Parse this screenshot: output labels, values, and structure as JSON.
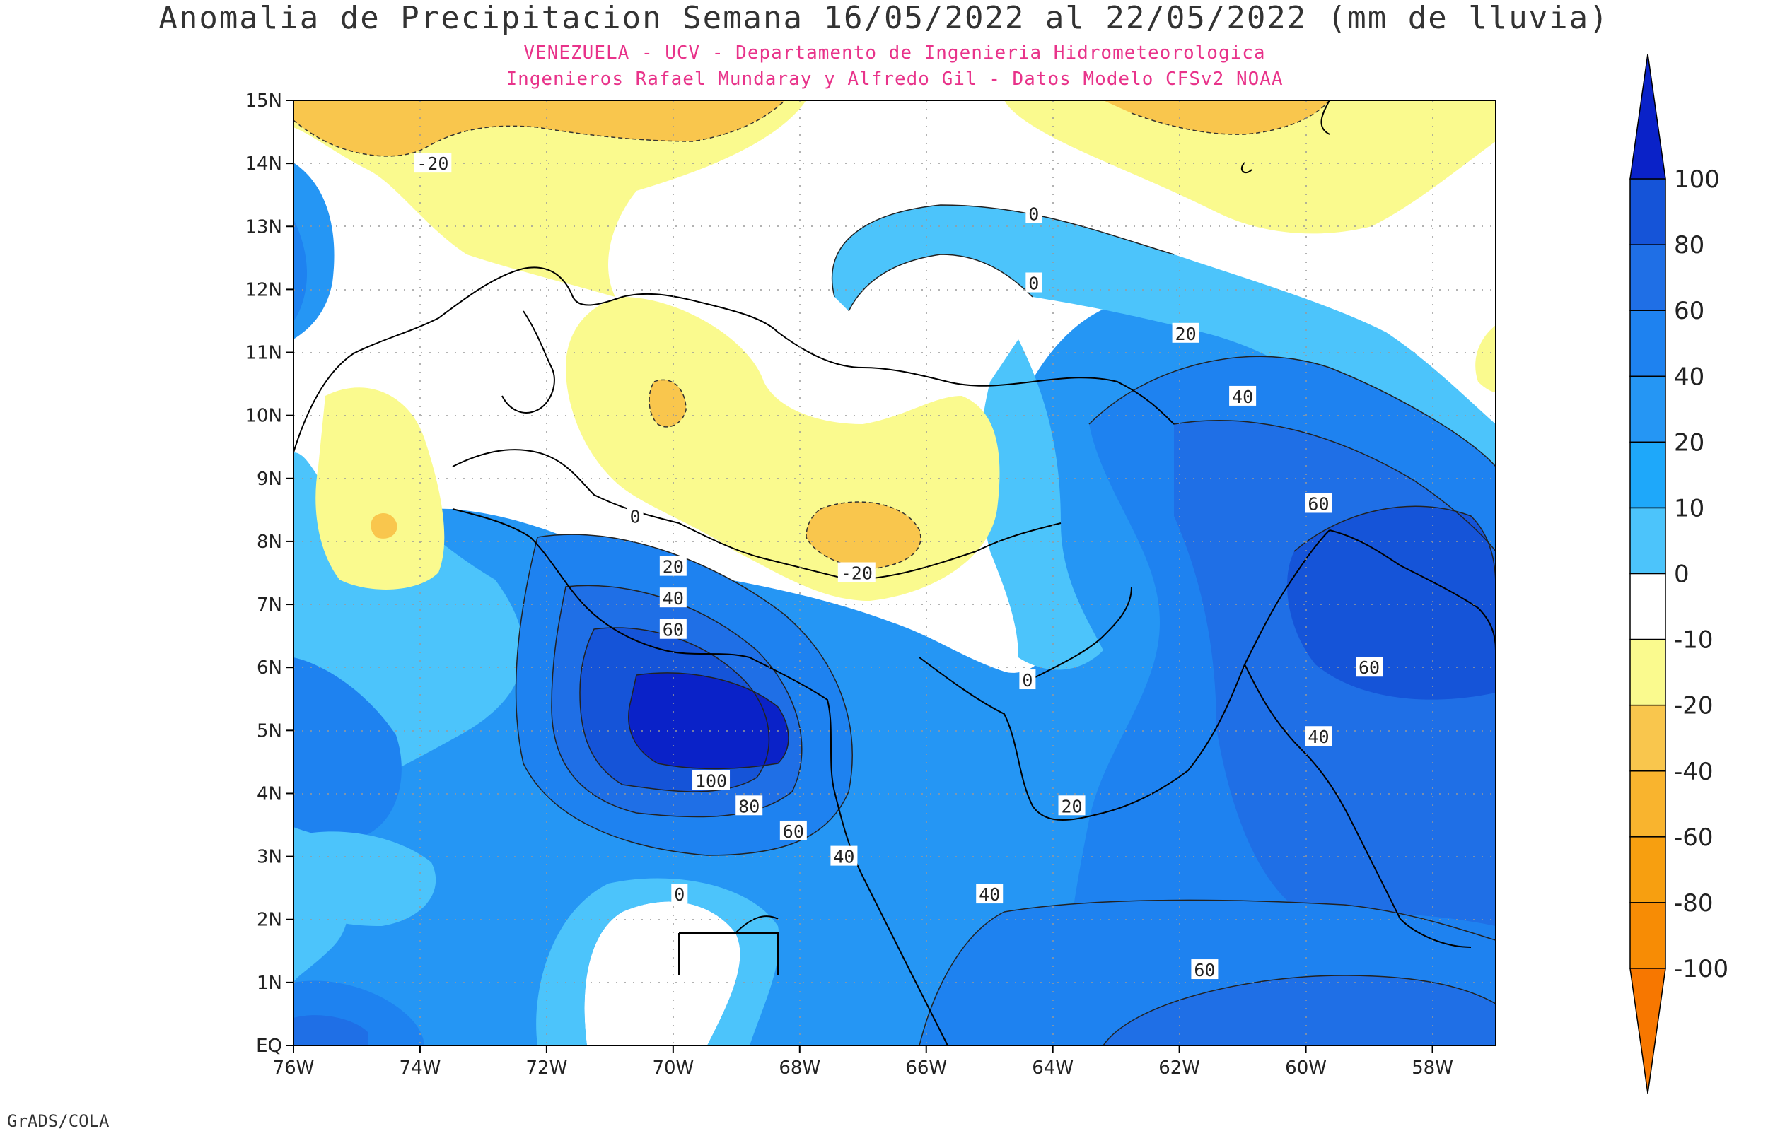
{
  "title": "Anomalia de Precipitacion Semana 16/05/2022 al 22/05/2022 (mm de lluvia)",
  "subtitle1": "VENEZUELA - UCV - Departamento de Ingenieria Hidrometeorologica",
  "subtitle2": "Ingenieros Rafael Mundaray y Alfredo Gil - Datos Modelo CFSv2 NOAA",
  "credit": "GrADS/COLA",
  "lon_labels": [
    "76W",
    "74W",
    "72W",
    "70W",
    "68W",
    "66W",
    "64W",
    "62W",
    "60W",
    "58W"
  ],
  "lat_labels": [
    "EQ",
    "1N",
    "2N",
    "3N",
    "4N",
    "5N",
    "6N",
    "7N",
    "8N",
    "9N",
    "10N",
    "11N",
    "12N",
    "13N",
    "14N",
    "15N"
  ],
  "colorbar": {
    "labels": [
      "100",
      "80",
      "60",
      "40",
      "20",
      "10",
      "0",
      "-10",
      "-20",
      "-40",
      "-60",
      "-80",
      "-100"
    ],
    "colors": [
      "#0a22c8",
      "#1554d8",
      "#1f6fe6",
      "#1e82f0",
      "#2596f4",
      "#1ea8fa",
      "#4cc4fb",
      "#ffffff",
      "#fafa8e",
      "#f9c64d",
      "#f9b42e",
      "#f79f10",
      "#f78c05",
      "#f77700"
    ]
  },
  "contour_labels": [
    {
      "text": "-20",
      "lon": -73.8,
      "lat": 14.0
    },
    {
      "text": "0",
      "lon": -64.3,
      "lat": 13.2
    },
    {
      "text": "0",
      "lon": -64.3,
      "lat": 12.1
    },
    {
      "text": "20",
      "lon": -61.9,
      "lat": 11.3
    },
    {
      "text": "40",
      "lon": -61.0,
      "lat": 10.3
    },
    {
      "text": "60",
      "lon": -59.8,
      "lat": 8.6
    },
    {
      "text": "60",
      "lon": -59.0,
      "lat": 6.0
    },
    {
      "text": "40",
      "lon": -59.8,
      "lat": 4.9
    },
    {
      "text": "0",
      "lon": -70.6,
      "lat": 8.4
    },
    {
      "text": "20",
      "lon": -70.0,
      "lat": 7.6
    },
    {
      "text": "40",
      "lon": -70.0,
      "lat": 7.1
    },
    {
      "text": "60",
      "lon": -70.0,
      "lat": 6.6
    },
    {
      "text": "-20",
      "lon": -67.1,
      "lat": 7.5
    },
    {
      "text": "0",
      "lon": -64.4,
      "lat": 5.8
    },
    {
      "text": "20",
      "lon": -63.7,
      "lat": 3.8
    },
    {
      "text": "100",
      "lon": -69.4,
      "lat": 4.2
    },
    {
      "text": "80",
      "lon": -68.8,
      "lat": 3.8
    },
    {
      "text": "60",
      "lon": -68.1,
      "lat": 3.4
    },
    {
      "text": "40",
      "lon": -67.3,
      "lat": 3.0
    },
    {
      "text": "40",
      "lon": -65.0,
      "lat": 2.4
    },
    {
      "text": "0",
      "lon": -69.9,
      "lat": 2.4
    },
    {
      "text": "60",
      "lon": -61.6,
      "lat": 1.2
    }
  ],
  "grid": true
}
